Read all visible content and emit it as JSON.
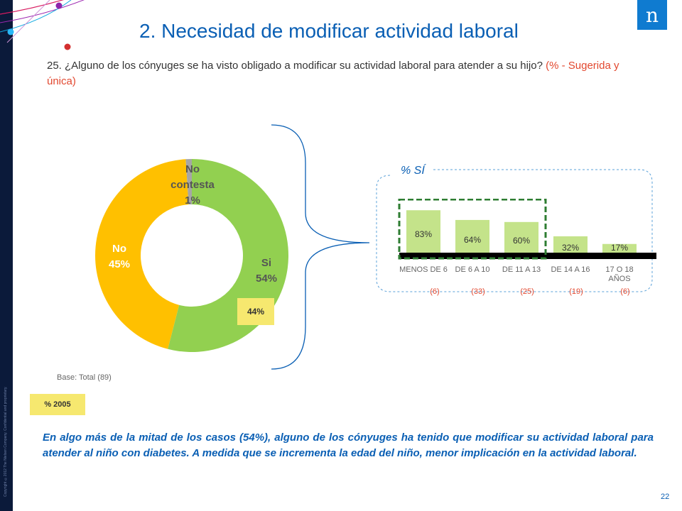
{
  "header": {
    "title": "2. Necesidad de modificar actividad laboral",
    "question_main": "25. ¿Alguno de los cónyuges se ha visto obligado a modificar su actividad laboral para atender a su hijo?",
    "question_note": "(% - Sugerida y única)",
    "logo_text": "n",
    "copyright": "Copyright ©2012 The Nielsen Company. Confidential and proprietary."
  },
  "base_text": "Base: Total (89)",
  "legend_2005": "% 2005",
  "conclusion": "En algo más de la mitad de los casos (54%), alguno de los cónyuges ha tenido que modificar su actividad laboral para atender al niño con diabetes. A medida que se incrementa la edad del niño, menor implicación en la actividad laboral.",
  "page_number": "22",
  "colors": {
    "si": "#92d050",
    "no": "#ffc000",
    "no_contesta": "#a6a6a6",
    "bar": "#c4e38a",
    "badge_2005": "#f6e86f",
    "accent_blue": "#0a5fb4",
    "highlight_box": "#2e7d32"
  },
  "chart_data": [
    {
      "type": "pie",
      "subtype": "donut",
      "series": [
        {
          "name": "Si",
          "label_line1": "Si",
          "label_line2": "54%",
          "value": 54
        },
        {
          "name": "No",
          "label_line1": "No",
          "label_line2": "45%",
          "value": 45
        },
        {
          "name": "No contesta",
          "label_line1": "No",
          "label_line2": "contesta",
          "label_line3": "1%",
          "value": 1
        }
      ],
      "comparison_2005": {
        "label": "44%",
        "value": 44
      }
    },
    {
      "type": "bar",
      "title": "% SÍ",
      "categories": [
        "MENOS DE 6",
        "DE 6 A 10",
        "DE 11 A 13",
        "DE 14 A 16",
        "17 O 18 AÑOS"
      ],
      "values": [
        83,
        64,
        60,
        32,
        17
      ],
      "value_labels": [
        "83%",
        "64%",
        "60%",
        "32%",
        "17%"
      ],
      "bases": [
        "(6)",
        "(33)",
        "(25)",
        "(19)",
        "(6)"
      ],
      "ylim": [
        0,
        100
      ],
      "highlighted_categories": [
        "MENOS DE 6",
        "DE 6 A 10",
        "DE 11 A 13"
      ]
    }
  ]
}
